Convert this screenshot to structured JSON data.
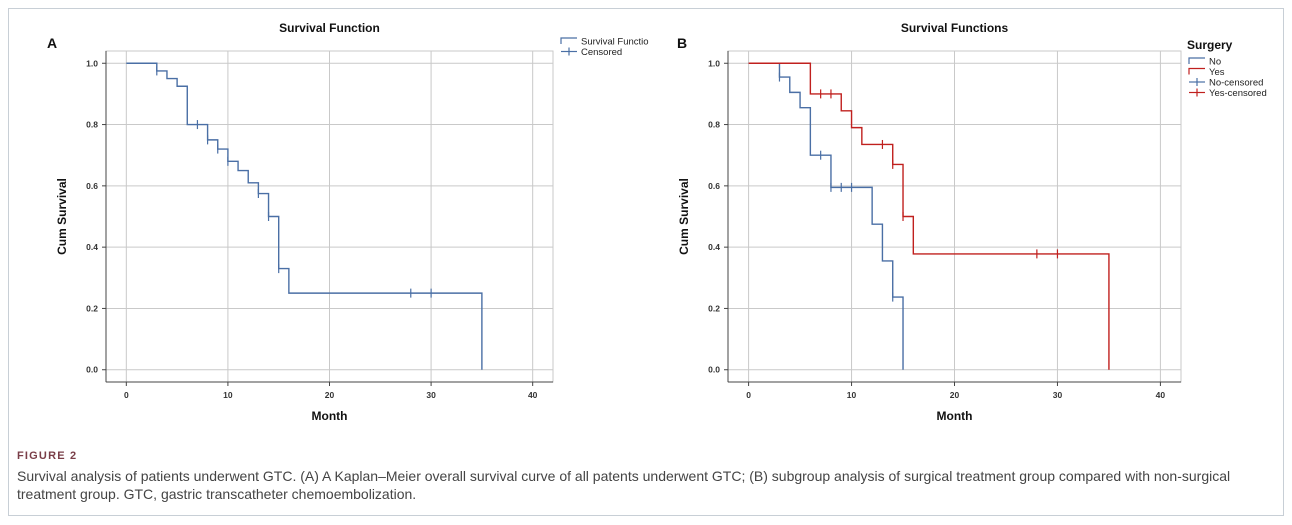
{
  "figure": {
    "label": "FIGURE 2",
    "caption": "Survival analysis of patients underwent GTC. (A) A Kaplan–Meier overall survival curve of all patents underwent GTC; (B) subgroup analysis of surgical treatment group compared with non-surgical treatment group. GTC, gastric transcatheter chemoembolization."
  },
  "colors": {
    "blue": "#4a6fa5",
    "red": "#c0201e",
    "grid": "#c9c9c9",
    "axis": "#444444"
  },
  "chart_data": [
    {
      "panel": "A",
      "type": "line",
      "step": "km",
      "title": "Survival Function",
      "xlabel": "Month",
      "ylabel": "Cum Survival",
      "xlim": [
        -2,
        42
      ],
      "ylim": [
        -0.04,
        1.04
      ],
      "xticks": [
        0,
        10,
        20,
        30,
        40
      ],
      "yticks": [
        0.0,
        0.2,
        0.4,
        0.6,
        0.8,
        1.0
      ],
      "ytick_labels": [
        "0.0",
        "0.2",
        "0.4",
        "0.6",
        "0.8",
        "1.0"
      ],
      "grid": true,
      "legend": {
        "position": "top-right",
        "title": "",
        "entries": [
          "Survival Function",
          "Censored"
        ]
      },
      "series": [
        {
          "name": "Survival Function",
          "color": "#4a6fa5",
          "x": [
            0,
            3,
            4,
            5,
            6,
            8,
            9,
            10,
            11,
            12,
            13,
            14,
            15,
            16,
            35
          ],
          "y": [
            1.0,
            0.975,
            0.95,
            0.925,
            0.8,
            0.75,
            0.72,
            0.68,
            0.65,
            0.61,
            0.575,
            0.5,
            0.33,
            0.25,
            0.0
          ],
          "censored_x": [
            3,
            7,
            8,
            9,
            10,
            13,
            14,
            15,
            28,
            30
          ],
          "censored_y": [
            0.975,
            0.8,
            0.75,
            0.72,
            0.68,
            0.575,
            0.5,
            0.33,
            0.25,
            0.25
          ]
        }
      ]
    },
    {
      "panel": "B",
      "type": "line",
      "step": "km",
      "title": "Survival Functions",
      "xlabel": "Month",
      "ylabel": "Cum Survival",
      "xlim": [
        -2,
        42
      ],
      "ylim": [
        -0.04,
        1.04
      ],
      "xticks": [
        0,
        10,
        20,
        30,
        40
      ],
      "yticks": [
        0.0,
        0.2,
        0.4,
        0.6,
        0.8,
        1.0
      ],
      "ytick_labels": [
        "0.0",
        "0.2",
        "0.4",
        "0.6",
        "0.8",
        "1.0"
      ],
      "grid": true,
      "legend": {
        "position": "top-right",
        "title": "Surgery",
        "entries": [
          "No",
          "Yes",
          "No-censored",
          "Yes-censored"
        ]
      },
      "series": [
        {
          "name": "No",
          "color": "#4a6fa5",
          "x": [
            0,
            3,
            4,
            5,
            6,
            8,
            12,
            13,
            14,
            15
          ],
          "y": [
            1.0,
            0.955,
            0.905,
            0.855,
            0.7,
            0.595,
            0.475,
            0.355,
            0.237,
            0.0
          ],
          "censored_x": [
            3,
            7,
            8,
            9,
            10,
            14
          ],
          "censored_y": [
            0.955,
            0.7,
            0.595,
            0.595,
            0.595,
            0.237
          ]
        },
        {
          "name": "Yes",
          "color": "#c0201e",
          "x": [
            0,
            6,
            9,
            10,
            11,
            14,
            15,
            16,
            35
          ],
          "y": [
            1.0,
            0.9,
            0.845,
            0.79,
            0.735,
            0.67,
            0.5,
            0.378,
            0.0
          ],
          "censored_x": [
            7,
            8,
            13,
            14,
            15,
            28,
            30
          ],
          "censored_y": [
            0.9,
            0.9,
            0.735,
            0.67,
            0.5,
            0.378,
            0.378
          ]
        }
      ]
    }
  ]
}
